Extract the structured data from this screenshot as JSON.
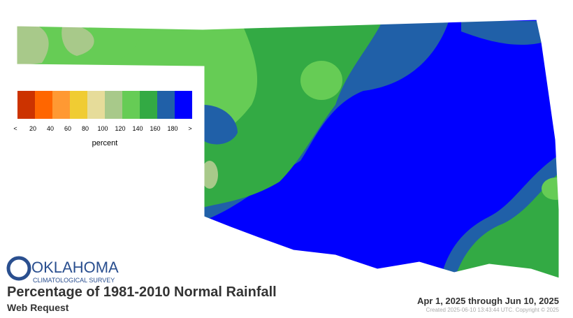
{
  "logo": {
    "name": "OKLAHOMA",
    "sub": "CLIMATOLOGICAL SURVEY"
  },
  "title": "Percentage of 1981-2010 Normal Rainfall",
  "subtitle": "Web Request",
  "date_range": "Apr 1, 2025 through Jun 10, 2025",
  "credit": "Created 2025-06-10 13:43:44 UTC. Copyright © 2025",
  "legend": {
    "colors": [
      "#cc3300",
      "#ff6600",
      "#ff9933",
      "#f0cc33",
      "#e6dc9a",
      "#a8c98a",
      "#66cc55",
      "#33aa44",
      "#2060a8",
      "#0000ff"
    ],
    "labels": [
      "<",
      "20",
      "40",
      "60",
      "80",
      "100",
      "120",
      "140",
      "160",
      "180",
      ">"
    ],
    "unit": "percent"
  }
}
